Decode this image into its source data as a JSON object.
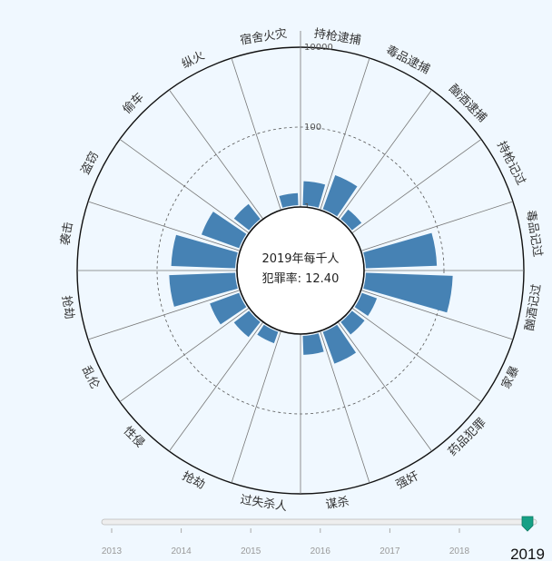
{
  "chart_data": {
    "type": "radial-bar",
    "center_text": [
      "2019年每千人",
      "犯罪率: 12.40"
    ],
    "categories": [
      "持枪逮捕",
      "毒品逮捕",
      "酗酒逮捕",
      "持枪记过",
      "毒品记过",
      "酗酒记过",
      "家暴",
      "药品犯罪",
      "强奸",
      "谋杀",
      "过失杀人",
      "抢劫",
      "性侵",
      "乱伦",
      "抢劫",
      "袭击",
      "盗窃",
      "偷车",
      "纵火",
      "宿舍火灾"
    ],
    "values": [
      4,
      8,
      2,
      1,
      60,
      150,
      2.5,
      2.5,
      7,
      3,
      0.5,
      2,
      3,
      6,
      45,
      40,
      10,
      3,
      0.5,
      2
    ],
    "scale": "log",
    "r_ticks": [
      1,
      100,
      10000
    ],
    "r_tick_labels": [
      "1",
      "100",
      "10000"
    ],
    "bar_color": "#4682b4",
    "slider": {
      "years": [
        "2013",
        "2014",
        "2015",
        "2016",
        "2017",
        "2018"
      ],
      "current_year": "2019",
      "handle_color": "#16a085"
    }
  }
}
